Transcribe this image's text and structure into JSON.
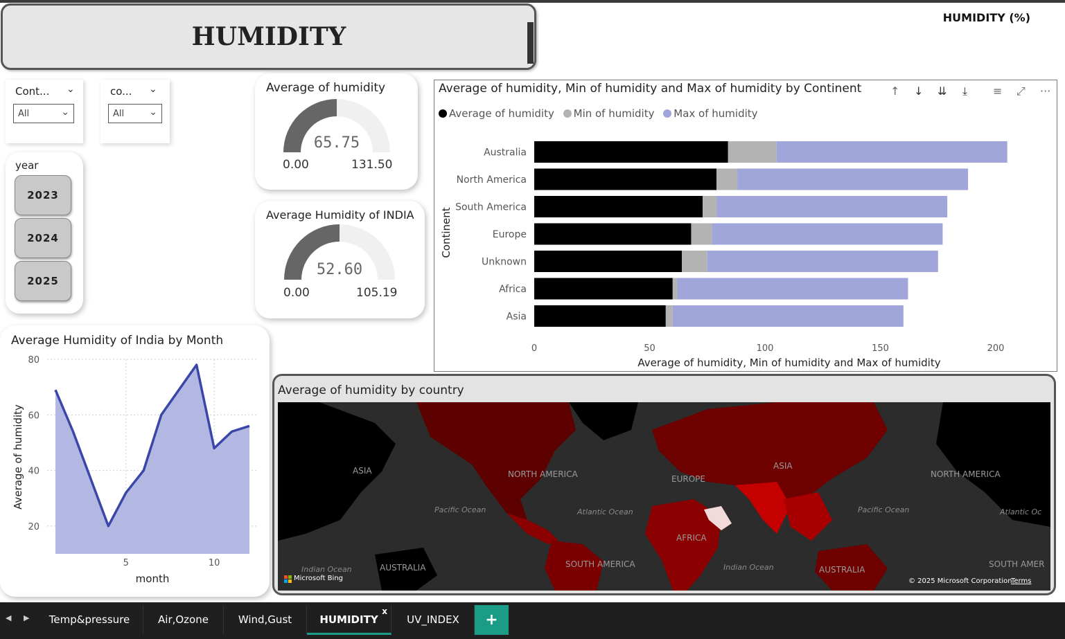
{
  "header": {
    "title": "HUMIDITY",
    "page_label": "HUMIDITY (%)"
  },
  "slicers": [
    {
      "header": "Cont...",
      "value": "All"
    },
    {
      "header": "co...",
      "value": "All"
    }
  ],
  "year_slicer": {
    "header": "year",
    "options": [
      "2023",
      "2024",
      "2025"
    ]
  },
  "gauges": [
    {
      "title": "Average of humidity",
      "value": 65.75,
      "value_label": "65.75",
      "min_label": "0.00",
      "max_label": "131.50"
    },
    {
      "title": "Average Humidity of INDIA",
      "value": 52.6,
      "value_label": "52.60",
      "min_label": "0.00",
      "max_label": "105.19"
    }
  ],
  "colors": {
    "avg": "#000000",
    "min": "#b3b3b3",
    "max": "#a0a6d9",
    "area_fill": "#b3b8e3",
    "area_line": "#3a47a8",
    "gauge_fill": "#666666",
    "gauge_track": "#f0f0f0",
    "tab_accent": "#1a9c86"
  },
  "chart_data": [
    {
      "type": "bar",
      "orientation": "horizontal",
      "stacked": true,
      "title": "Average of humidity, Min of humidity and Max of humidity by Continent",
      "ylabel": "Continent",
      "xlabel": "Average of humidity, Min of humidity and Max of humidity",
      "categories": [
        "Australia",
        "North America",
        "South America",
        "Europe",
        "Unknown",
        "Africa",
        "Asia"
      ],
      "series": [
        {
          "name": "Average of humidity",
          "values": [
            84,
            79,
            73,
            68,
            64,
            60,
            57
          ]
        },
        {
          "name": "Min of humidity",
          "values": [
            21,
            9,
            6,
            9,
            11,
            2,
            3
          ]
        },
        {
          "name": "Max of humidity",
          "values": [
            100,
            100,
            100,
            100,
            100,
            100,
            100
          ]
        }
      ],
      "xticks": [
        "0",
        "50",
        "100",
        "150",
        "200"
      ],
      "xlim": [
        0,
        215
      ],
      "legend": "top-left",
      "grid": false
    },
    {
      "type": "area",
      "title": "Average Humidity of India by Month",
      "xlabel": "month",
      "ylabel": "Average of humidity",
      "x": [
        1,
        2,
        3,
        4,
        5,
        6,
        7,
        8,
        9,
        10,
        11,
        12
      ],
      "values": [
        69,
        54,
        37,
        20,
        32,
        40,
        60,
        69,
        78,
        48,
        54,
        56
      ],
      "xticks": [
        "5",
        "10"
      ],
      "yticks": [
        "20",
        "40",
        "60",
        "80"
      ],
      "xlim": [
        0.5,
        12.8
      ],
      "ylim": [
        10,
        82
      ],
      "grid": true
    }
  ],
  "map": {
    "title": "Average of humidity by country",
    "labels": [
      "ASIA",
      "NORTH AMERICA",
      "EUROPE",
      "ASIA",
      "NORTH AMERICA",
      "Pacific Ocean",
      "Atlantic Ocean",
      "Pacific Ocean",
      "Atlantic Oc",
      "AFRICA",
      "SOUTH AMERICA",
      "Indian Ocean",
      "AUSTRALIA",
      "Indian Ocean",
      "AUSTRALIA",
      "SOUTH AMER"
    ],
    "attribution": "Microsoft Bing",
    "copyright": "© 2025 Microsoft Corporation",
    "terms": "Terms"
  },
  "visual_toolbar": [
    "↑",
    "↓",
    "⇊",
    "⤓",
    "≡",
    "⤢",
    "···"
  ],
  "tabs": [
    {
      "label": "Temp&pressure"
    },
    {
      "label": "Air,Ozone"
    },
    {
      "label": "Wind,Gust"
    },
    {
      "label": "HUMIDITY",
      "close": "x"
    },
    {
      "label": "UV_INDEX"
    },
    {
      "label": "+"
    }
  ],
  "tab_nav": {
    "prev": "◀",
    "next": "▶"
  }
}
